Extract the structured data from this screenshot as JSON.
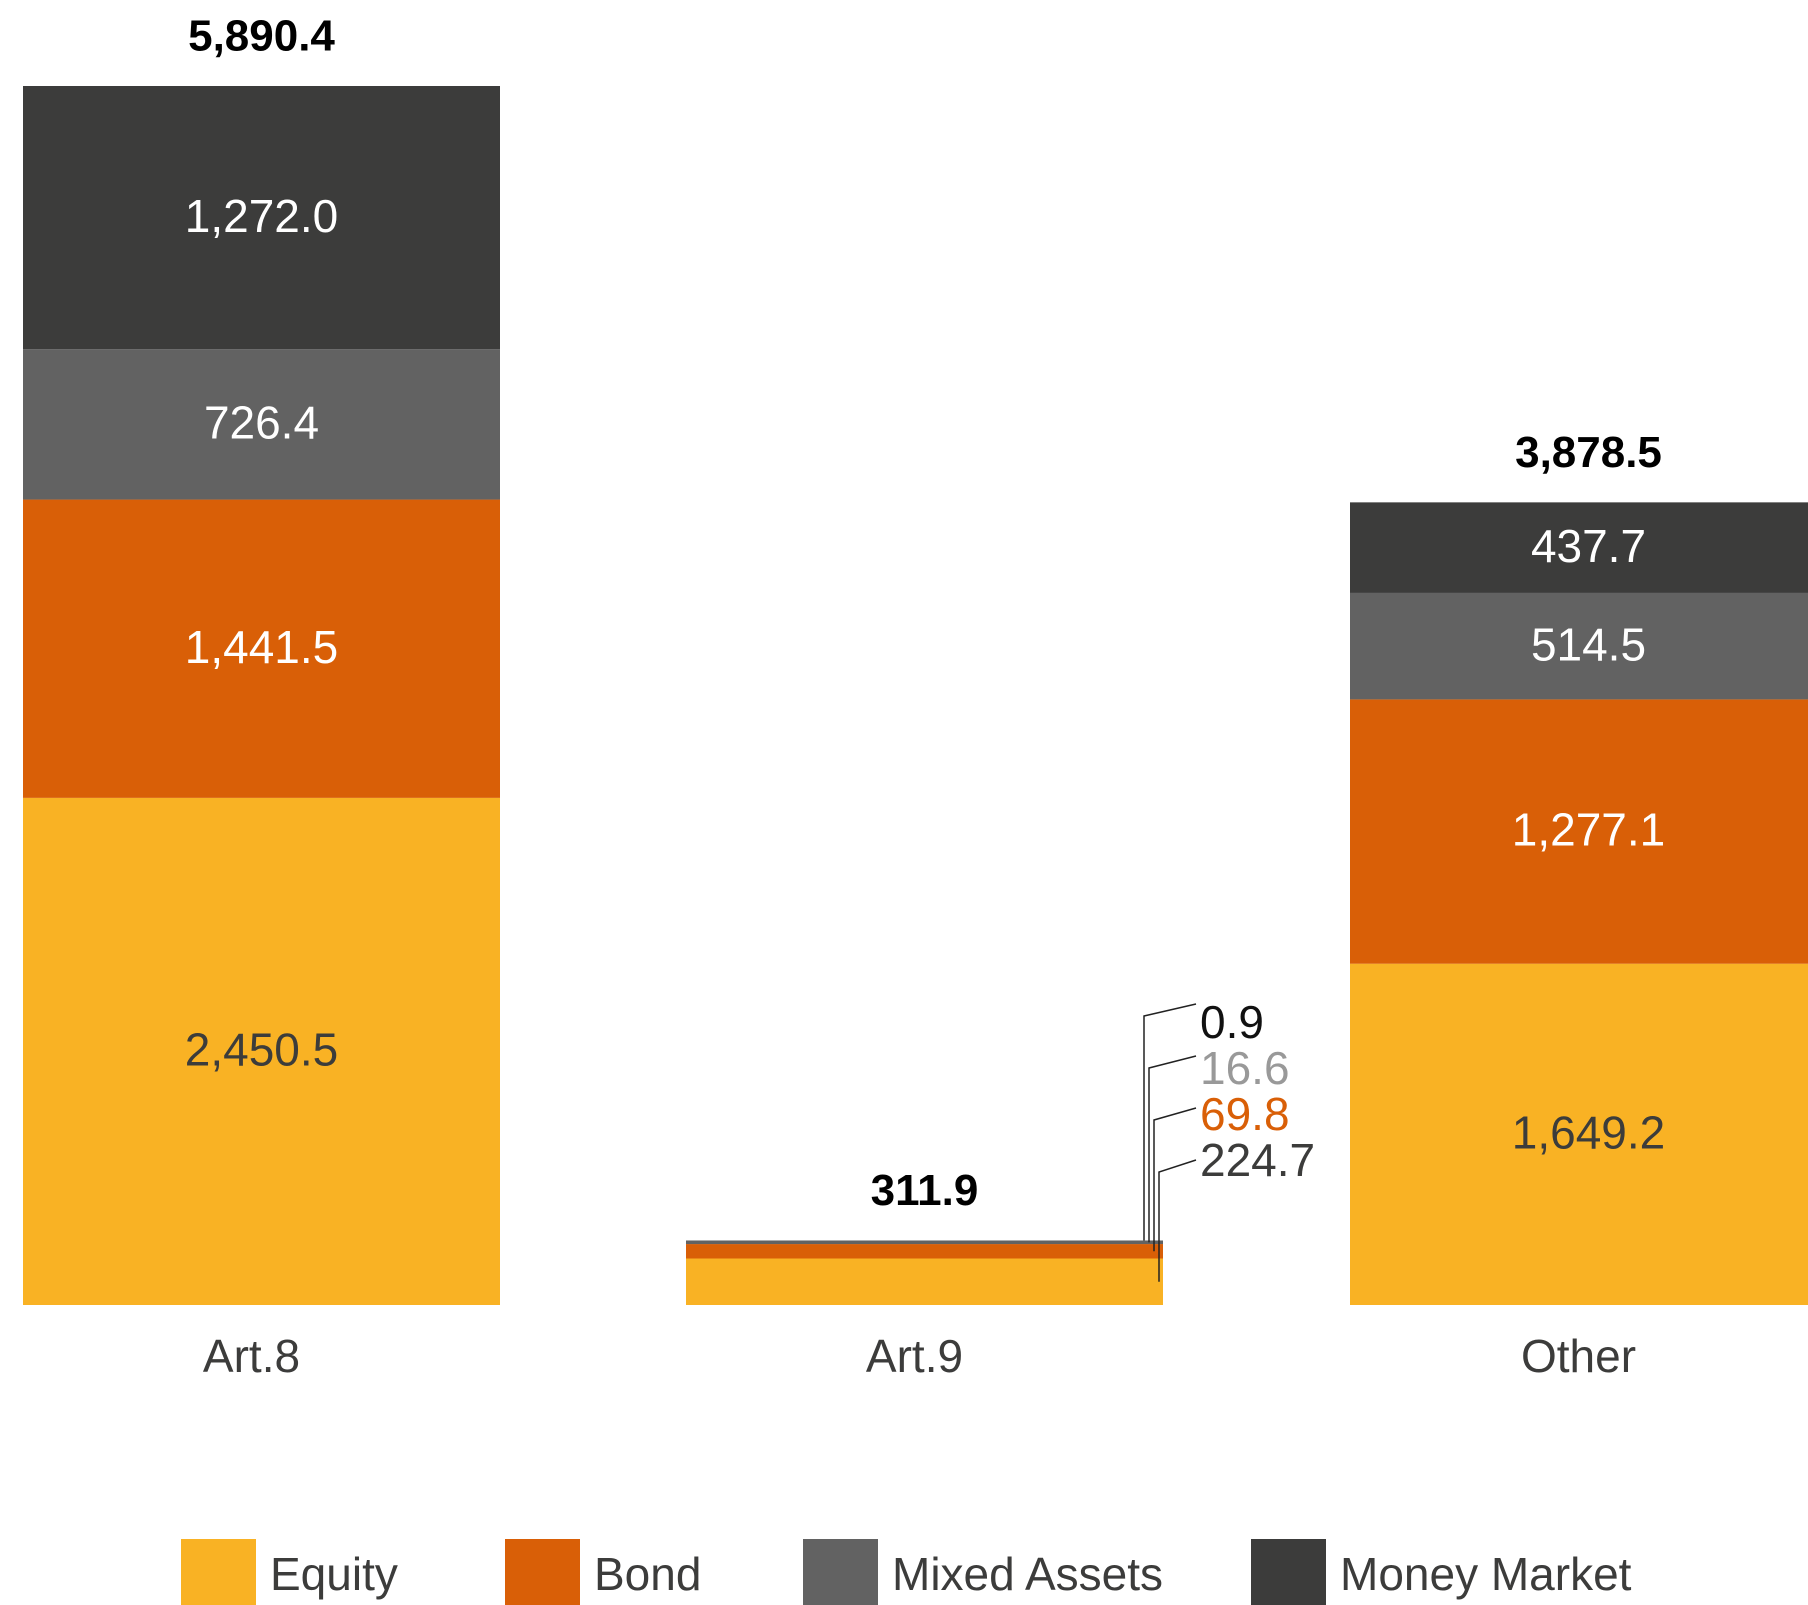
{
  "chart_data": {
    "type": "stacked-bar",
    "categories": [
      "Art.8",
      "Art.9",
      "Other"
    ],
    "series": [
      {
        "name": "Equity",
        "color": "#f9b224",
        "values": [
          2450.5,
          224.7,
          1649.2
        ],
        "value_labels": [
          "2,450.5",
          "224.7",
          "1,649.2"
        ]
      },
      {
        "name": "Bond",
        "color": "#d95f07",
        "values": [
          1441.5,
          69.8,
          1277.1
        ],
        "value_labels": [
          "1,441.5",
          "69.8",
          "1,277.1"
        ]
      },
      {
        "name": "Mixed Assets",
        "color": "#626262",
        "values": [
          726.4,
          16.6,
          514.5
        ],
        "value_labels": [
          "726.4",
          "16.6",
          "514.5"
        ]
      },
      {
        "name": "Money Market",
        "color": "#3c3c3b",
        "values": [
          1272.0,
          0.9,
          437.7
        ],
        "value_labels": [
          "1,272.0",
          "0.9",
          "437.7"
        ]
      }
    ],
    "totals": [
      5890.4,
      311.9,
      3878.5
    ],
    "total_labels": [
      "5,890.4",
      "311.9",
      "3,878.5"
    ]
  }
}
